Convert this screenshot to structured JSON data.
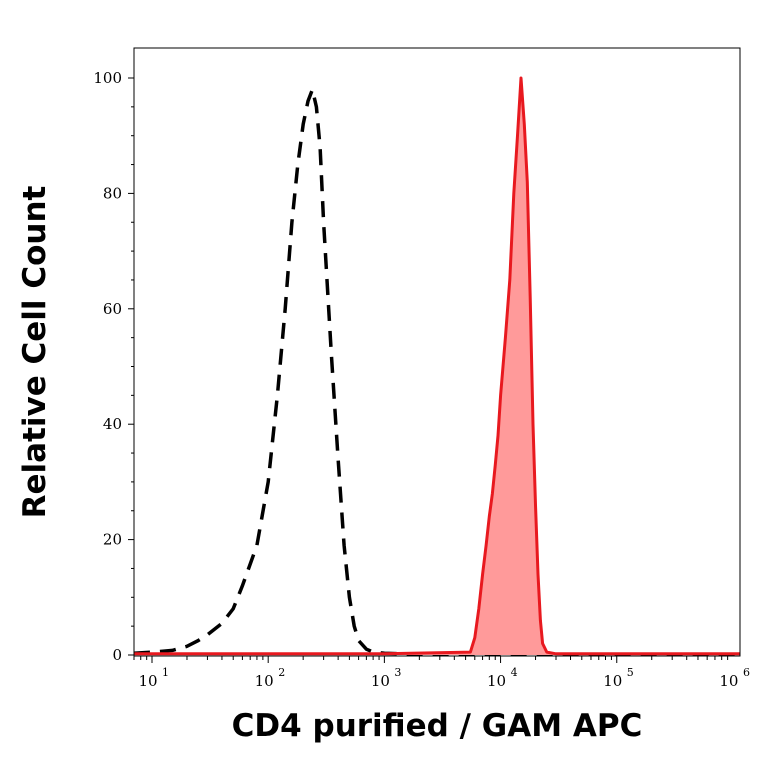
{
  "chart_data": {
    "type": "area",
    "xlabel": "CD4 purified / GAM APC",
    "ylabel": "Relative Cell Count",
    "x_scale": "log",
    "xlim": [
      7,
      1150000
    ],
    "ylim": [
      0,
      100
    ],
    "y_ticks": [
      "0",
      "20",
      "40",
      "60",
      "80",
      "100"
    ],
    "y_tick_values": [
      0,
      20,
      40,
      60,
      80,
      100
    ],
    "x_ticks": [
      {
        "base": "10",
        "exp": "1",
        "value": 10
      },
      {
        "base": "10",
        "exp": "2",
        "value": 100
      },
      {
        "base": "10",
        "exp": "3",
        "value": 1000
      },
      {
        "base": "10",
        "exp": "4",
        "value": 10000
      },
      {
        "base": "10",
        "exp": "5",
        "value": 100000
      },
      {
        "base": "10",
        "exp": "6",
        "value": 1000000
      }
    ],
    "grid": false,
    "series": [
      {
        "style": "dashed-outline",
        "color": "#000000",
        "x": [
          7,
          10,
          15,
          20,
          25,
          30,
          40,
          50,
          60,
          80,
          100,
          120,
          140,
          160,
          180,
          200,
          220,
          240,
          260,
          280,
          300,
          350,
          400,
          450,
          500,
          550,
          600,
          700,
          800,
          1000,
          1500,
          3000,
          10000,
          100000,
          1150000
        ],
        "y": [
          0.3,
          0.5,
          0.8,
          1.5,
          2.5,
          3.5,
          5.5,
          8,
          12,
          19,
          30,
          45,
          60,
          75,
          85,
          92,
          96,
          98,
          95,
          88,
          75,
          52,
          34,
          19,
          10,
          5,
          2.5,
          1,
          0.5,
          0.3,
          0.2,
          0.1,
          0.1,
          0.1,
          0.1
        ]
      },
      {
        "style": "filled",
        "color": "#e8191f",
        "fill": "#ff9a9a",
        "x": [
          7,
          1000,
          5500,
          6000,
          6500,
          7000,
          7500,
          8000,
          8500,
          9000,
          9500,
          10000,
          11000,
          12000,
          13000,
          14000,
          15000,
          16000,
          17000,
          18000,
          19000,
          20000,
          21000,
          22000,
          23000,
          25000,
          30000,
          100000,
          1150000
        ],
        "y": [
          0.2,
          0.2,
          0.5,
          3,
          8,
          14,
          19,
          24,
          28,
          33,
          38,
          45,
          55,
          65,
          80,
          90,
          100,
          92,
          82,
          62,
          40,
          26,
          14,
          6,
          2,
          0.5,
          0.2,
          0.2,
          0.2
        ]
      }
    ]
  }
}
